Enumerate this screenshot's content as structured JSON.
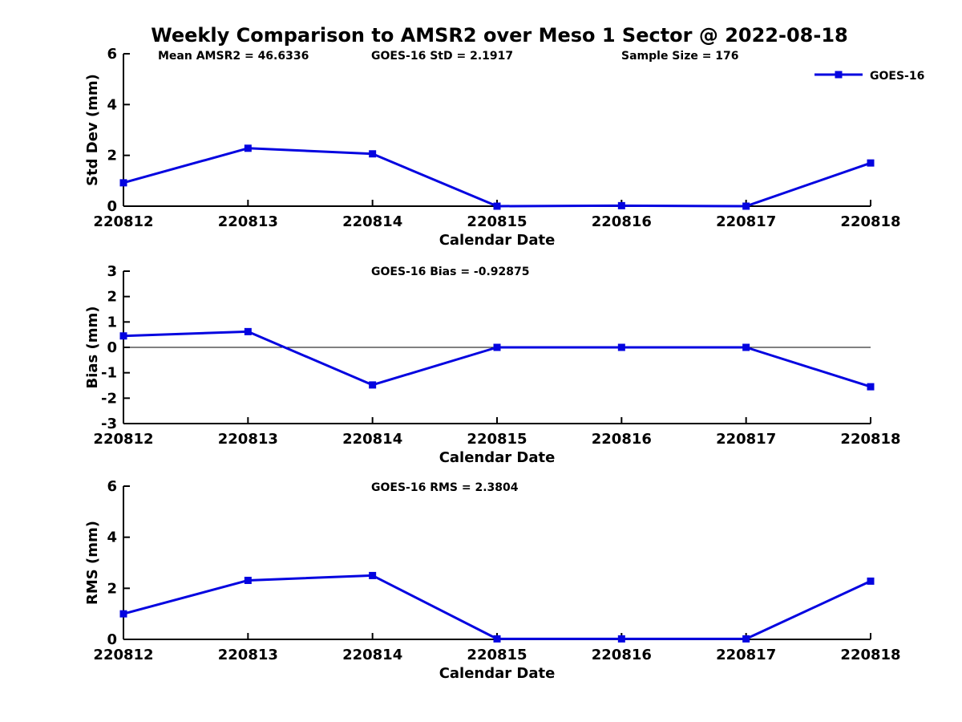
{
  "title": "Weekly Comparison to AMSR2 over Meso 1 Sector @ 2022-08-18",
  "colors": {
    "series_line": "#0404e0",
    "axis": "#000000",
    "background": "#ffffff"
  },
  "legend": {
    "label": "GOES-16",
    "position": "top-right"
  },
  "chart_data": [
    {
      "type": "line",
      "title": "",
      "annotations": [
        "Mean AMSR2 = 46.6336",
        "GOES-16 StD = 2.1917",
        "Sample Size = 176"
      ],
      "categories": [
        "220812",
        "220813",
        "220814",
        "220815",
        "220816",
        "220817",
        "220818"
      ],
      "series": [
        {
          "name": "GOES-16",
          "values": [
            0.92,
            2.28,
            2.06,
            0.0,
            0.02,
            0.0,
            1.7
          ]
        }
      ],
      "xlabel": "Calendar Date",
      "ylabel": "Std Dev (mm)",
      "ylim": [
        0,
        6
      ],
      "yticks": [
        0,
        2,
        4,
        6
      ],
      "zero_line": false,
      "grid": false,
      "legend_position": "top-right",
      "marker": "square"
    },
    {
      "type": "line",
      "title": "",
      "annotations": [
        "GOES-16 Bias  = -0.92875"
      ],
      "categories": [
        "220812",
        "220813",
        "220814",
        "220815",
        "220816",
        "220817",
        "220818"
      ],
      "series": [
        {
          "name": "GOES-16",
          "values": [
            0.45,
            0.62,
            -1.48,
            0.0,
            0.0,
            0.0,
            -1.55
          ]
        }
      ],
      "xlabel": "Calendar Date",
      "ylabel": "Bias (mm)",
      "ylim": [
        -3,
        3
      ],
      "yticks": [
        -3,
        -2,
        -1,
        0,
        1,
        2,
        3
      ],
      "zero_line": true,
      "grid": false,
      "legend_position": "none",
      "marker": "square"
    },
    {
      "type": "line",
      "title": "",
      "annotations": [
        "GOES-16 RMS = 2.3804"
      ],
      "categories": [
        "220812",
        "220813",
        "220814",
        "220815",
        "220816",
        "220817",
        "220818"
      ],
      "series": [
        {
          "name": "GOES-16",
          "values": [
            1.0,
            2.31,
            2.5,
            0.02,
            0.02,
            0.02,
            2.28
          ]
        }
      ],
      "xlabel": "Calendar Date",
      "ylabel": "RMS (mm)",
      "ylim": [
        0,
        6
      ],
      "yticks": [
        0,
        2,
        4,
        6
      ],
      "zero_line": false,
      "grid": false,
      "legend_position": "none",
      "marker": "square"
    }
  ]
}
